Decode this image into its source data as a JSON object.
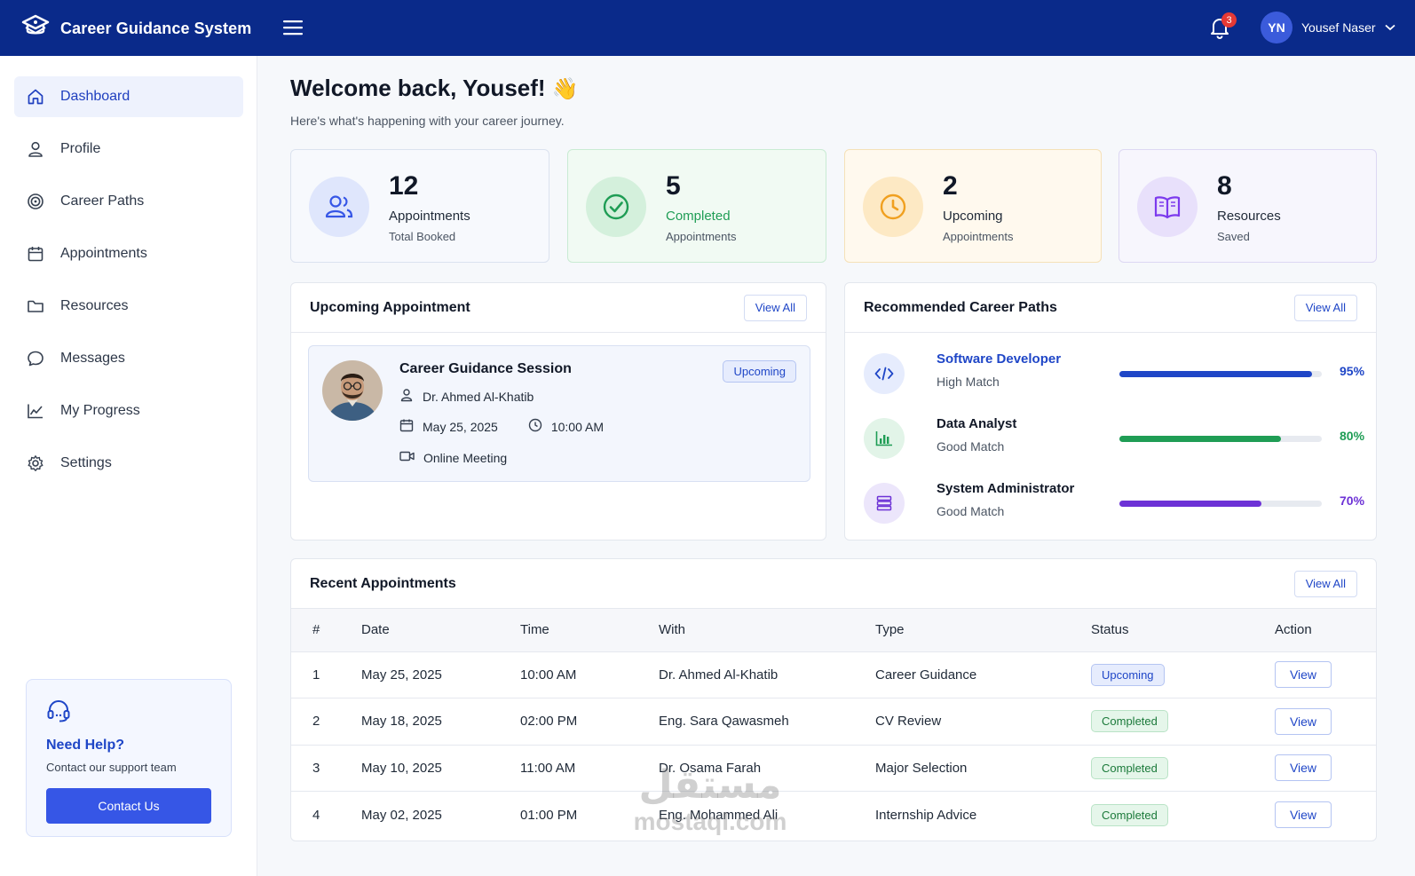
{
  "app": {
    "title": "Career Guidance System"
  },
  "topbar": {
    "notification_count": "3",
    "user_initials": "YN",
    "user_name": "Yousef Naser"
  },
  "sidebar": {
    "items": [
      {
        "label": "Dashboard",
        "icon": "home-icon",
        "active": true
      },
      {
        "label": "Profile",
        "icon": "user-icon"
      },
      {
        "label": "Career Paths",
        "icon": "target-icon"
      },
      {
        "label": "Appointments",
        "icon": "calendar-icon"
      },
      {
        "label": "Resources",
        "icon": "folder-icon"
      },
      {
        "label": "Messages",
        "icon": "chat-icon"
      },
      {
        "label": "My Progress",
        "icon": "chart-line-icon"
      },
      {
        "label": "Settings",
        "icon": "gear-icon"
      }
    ],
    "help": {
      "title": "Need Help?",
      "subtitle": "Contact our support team",
      "button": "Contact Us"
    }
  },
  "welcome": {
    "title": "Welcome back, Yousef!",
    "emoji": "👋",
    "subtitle": "Here's what's happening with your career journey."
  },
  "stats": [
    {
      "value": "12",
      "label": "Appointments",
      "sub": "Total Booked",
      "accent": "#3656e6"
    },
    {
      "value": "5",
      "label": "Completed",
      "sub": "Appointments",
      "accent": "#1f9d55"
    },
    {
      "value": "2",
      "label": "Upcoming",
      "sub": "Appointments",
      "accent": "#f0a020"
    },
    {
      "value": "8",
      "label": "Resources",
      "sub": "Saved",
      "accent": "#7c3aed"
    }
  ],
  "upcoming": {
    "title": "Upcoming Appointment",
    "view_all": "View All",
    "session_title": "Career Guidance Session",
    "badge": "Upcoming",
    "advisor": "Dr. Ahmed Al-Khatib",
    "date": "May 25, 2025",
    "time": "10:00 AM",
    "mode": "Online Meeting"
  },
  "career_paths": {
    "title": "Recommended Career Paths",
    "view_all": "View All",
    "items": [
      {
        "name": "Software Developer",
        "match": "High Match",
        "percent": "95%",
        "value": 0.95,
        "color": "#1f46c7"
      },
      {
        "name": "Data Analyst",
        "match": "Good Match",
        "percent": "80%",
        "value": 0.8,
        "color": "#1f9d55"
      },
      {
        "name": "System Administrator",
        "match": "Good Match",
        "percent": "70%",
        "value": 0.7,
        "color": "#6d32d6"
      }
    ]
  },
  "recent": {
    "title": "Recent Appointments",
    "view_all": "View All",
    "columns": [
      "#",
      "Date",
      "Time",
      "With",
      "Type",
      "Status",
      "Action"
    ],
    "rows": [
      {
        "n": "1",
        "date": "May 25, 2025",
        "time": "10:00 AM",
        "with": "Dr. Ahmed Al-Khatib",
        "type": "Career Guidance",
        "status": "Upcoming",
        "action": "View"
      },
      {
        "n": "2",
        "date": "May 18, 2025",
        "time": "02:00 PM",
        "with": "Eng. Sara Qawasmeh",
        "type": "CV Review",
        "status": "Completed",
        "action": "View"
      },
      {
        "n": "3",
        "date": "May 10, 2025",
        "time": "11:00 AM",
        "with": "Dr. Osama Farah",
        "type": "Major Selection",
        "status": "Completed",
        "action": "View"
      },
      {
        "n": "4",
        "date": "May 02, 2025",
        "time": "01:00 PM",
        "with": "Eng. Mohammed Ali",
        "type": "Internship Advice",
        "status": "Completed",
        "action": "View"
      }
    ]
  },
  "watermark": {
    "arabic": "مستقل",
    "latin": "mostaql.com"
  }
}
